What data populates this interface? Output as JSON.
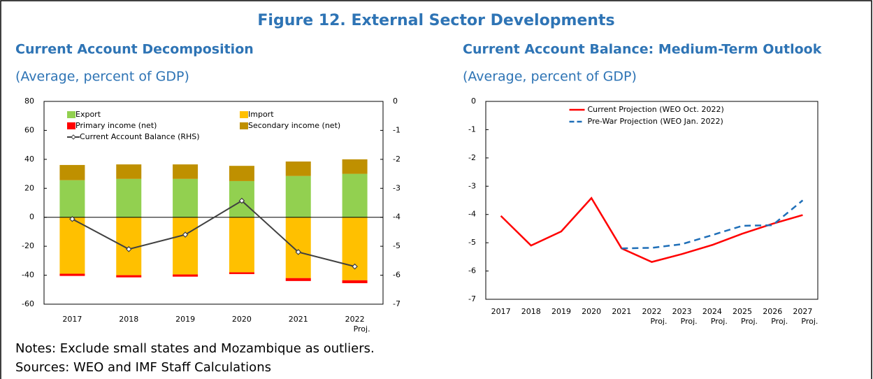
{
  "title": "Figure 12. External Sector Developments",
  "notes": [
    "Notes: Exclude small states and Mozambique as outliers.",
    "Sources: WEO and IMF Staff Calculations"
  ],
  "chart_data": [
    {
      "type": "bar",
      "title": "Current Account Decomposition",
      "subtitle": "(Average, percent of GDP)",
      "categories": [
        "2017",
        "2018",
        "2019",
        "2020",
        "2021",
        "2022 Proj."
      ],
      "series": [
        {
          "name": "Export",
          "color": "#92d050",
          "values": [
            25.6,
            26.5,
            26.5,
            25,
            28.5,
            30
          ]
        },
        {
          "name": "Import",
          "color": "#ffc000",
          "values": [
            -39,
            -40,
            -39.5,
            -38,
            -42,
            -43.5
          ]
        },
        {
          "name": "Primary income (net)",
          "color": "#ff0000",
          "values": [
            -1.5,
            -1.5,
            -1.5,
            -1.2,
            -2,
            -2
          ]
        },
        {
          "name": "Secondary income (net)",
          "color": "#bf9000",
          "values": [
            10.5,
            10,
            10,
            10.5,
            10,
            10
          ]
        },
        {
          "name": "Current Account Balance (RHS)",
          "color": "#404040",
          "type": "line",
          "axis": "y2",
          "values": [
            -4.06,
            -5.1,
            -4.6,
            -3.43,
            -5.2,
            -5.7
          ]
        }
      ],
      "ylim": [
        -60,
        80
      ],
      "yticks": [
        -60,
        -40,
        -20,
        0,
        20,
        40,
        60,
        80
      ],
      "y2lim": [
        -7,
        0
      ],
      "y2ticks": [
        -7,
        -6,
        -5,
        -4,
        -3,
        -2,
        -1,
        0
      ],
      "legend": "upper left",
      "grid": false
    },
    {
      "type": "line",
      "title": "Current Account Balance: Medium-Term Outlook",
      "subtitle": "(Average, percent of GDP)",
      "categories": [
        "2017",
        "2018",
        "2019",
        "2020",
        "2021",
        "2022 Proj.",
        "2023 Proj.",
        "2024 Proj.",
        "2025 Proj.",
        "2026 Proj.",
        "2027 Proj."
      ],
      "series": [
        {
          "name": "Current Projection (WEO Oct. 2022)",
          "color": "#ff0000",
          "dashed": false,
          "values": [
            -4.05,
            -5.1,
            -4.6,
            -3.42,
            -5.2,
            -5.68,
            -5.4,
            -5.08,
            -4.68,
            -4.33,
            -4.02
          ]
        },
        {
          "name": "Pre-War Projection (WEO Jan. 2022)",
          "color": "#1f6fb8",
          "dashed": true,
          "values": [
            null,
            null,
            null,
            null,
            -5.2,
            -5.18,
            -5.05,
            -4.73,
            -4.4,
            -4.38,
            -3.5
          ]
        }
      ],
      "ylim": [
        -7,
        0
      ],
      "yticks": [
        -7,
        -6,
        -5,
        -4,
        -3,
        -2,
        -1,
        0
      ],
      "legend": "upper center",
      "grid": false
    }
  ]
}
